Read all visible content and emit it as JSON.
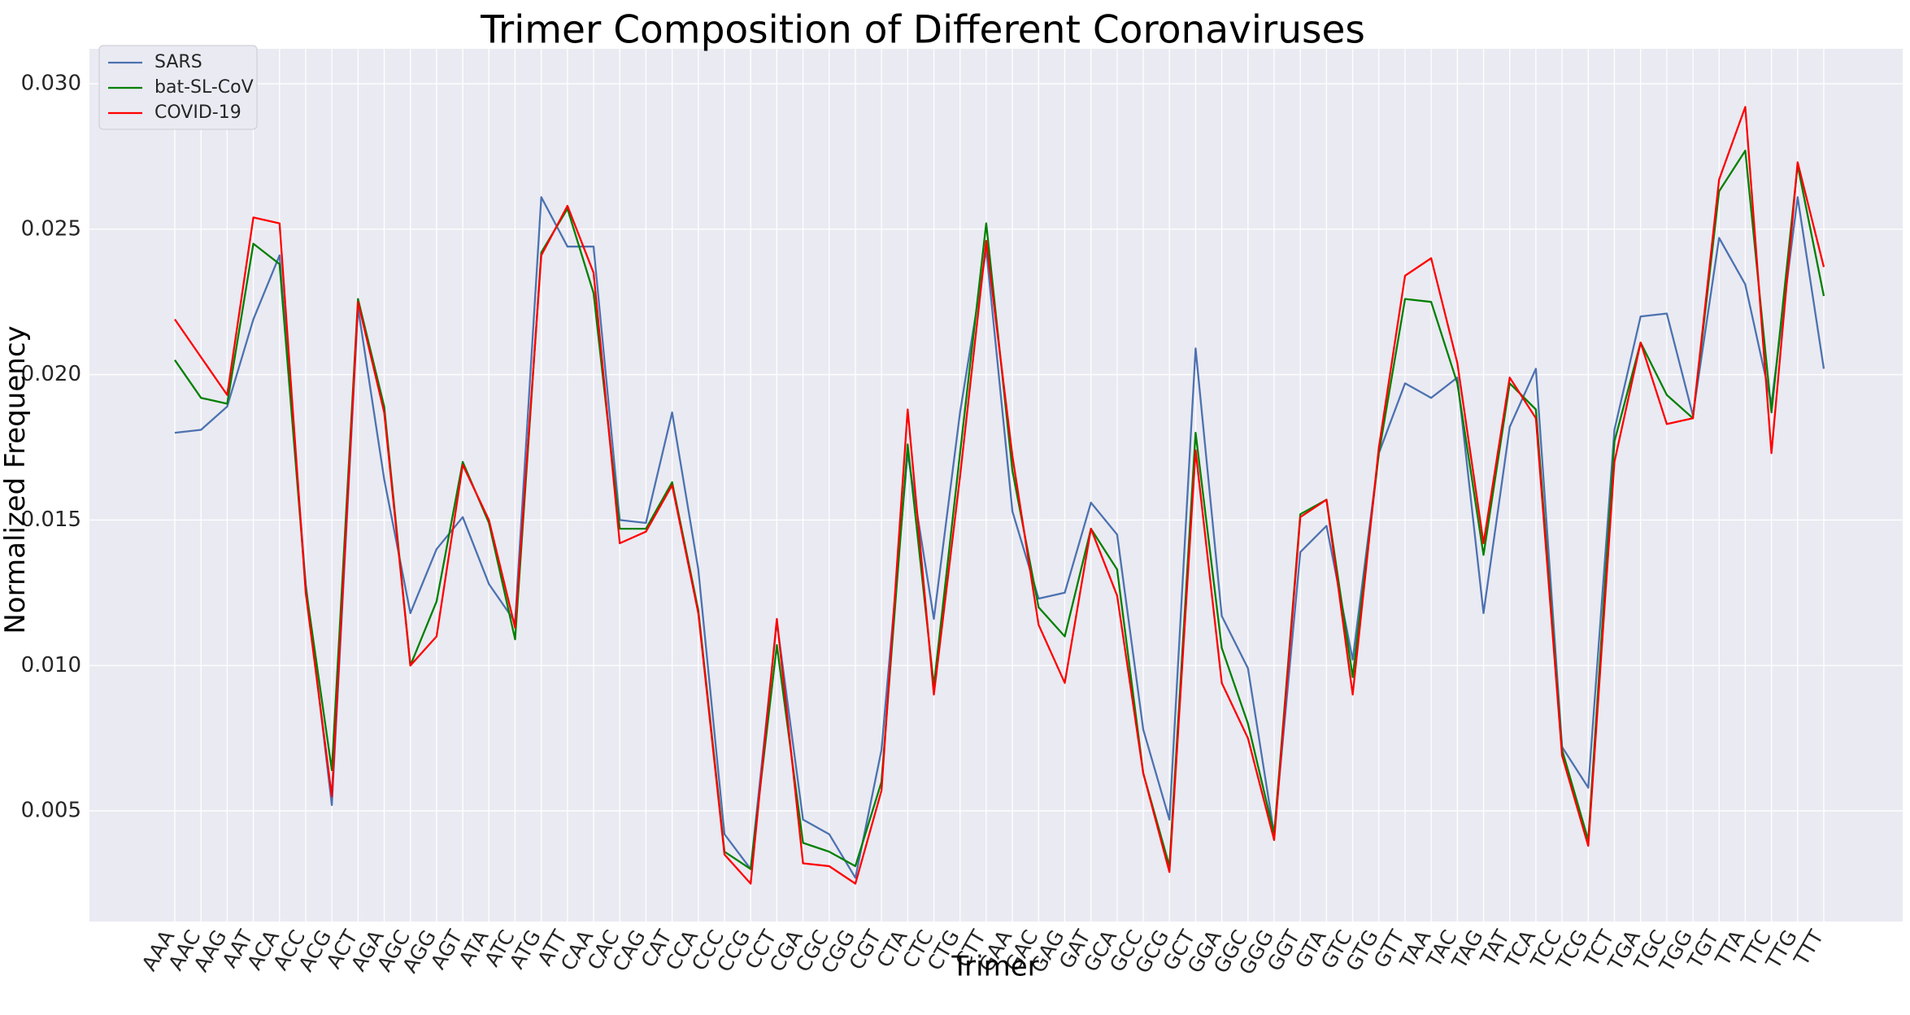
{
  "chart_data": {
    "type": "line",
    "title": "Trimer Composition of Different Coronaviruses",
    "xlabel": "Trimer",
    "ylabel": "Normalized Frequency",
    "ylim": [
      0.0012,
      0.0312
    ],
    "yticks": [
      0.005,
      0.01,
      0.015,
      0.02,
      0.025,
      0.03
    ],
    "ytick_labels": [
      "0.005",
      "0.010",
      "0.015",
      "0.020",
      "0.025",
      "0.030"
    ],
    "grid": true,
    "legend_position": "top-left",
    "categories": [
      "AAA",
      "AAC",
      "AAG",
      "AAT",
      "ACA",
      "ACC",
      "ACG",
      "ACT",
      "AGA",
      "AGC",
      "AGG",
      "AGT",
      "ATA",
      "ATC",
      "ATG",
      "ATT",
      "CAA",
      "CAC",
      "CAG",
      "CAT",
      "CCA",
      "CCC",
      "CCG",
      "CCT",
      "CGA",
      "CGC",
      "CGG",
      "CGT",
      "CTA",
      "CTC",
      "CTG",
      "CTT",
      "GAA",
      "GAC",
      "GAG",
      "GAT",
      "GCA",
      "GCC",
      "GCG",
      "GCT",
      "GGA",
      "GGC",
      "GGG",
      "GGT",
      "GTA",
      "GTC",
      "GTG",
      "GTT",
      "TAA",
      "TAC",
      "TAG",
      "TAT",
      "TCA",
      "TCC",
      "TCG",
      "TCT",
      "TGA",
      "TGC",
      "TGG",
      "TGT",
      "TTA",
      "TTC",
      "TTG",
      "TTT"
    ],
    "series": [
      {
        "name": "SARS",
        "color": "#4c72b0",
        "values": [
          0.018,
          0.0181,
          0.0189,
          0.0219,
          0.0241,
          0.0128,
          0.0052,
          0.0223,
          0.0164,
          0.0118,
          0.014,
          0.0151,
          0.0128,
          0.0115,
          0.0261,
          0.0244,
          0.0244,
          0.015,
          0.0149,
          0.0187,
          0.0133,
          0.0042,
          0.003,
          0.0115,
          0.0047,
          0.0042,
          0.0027,
          0.0071,
          0.0173,
          0.0116,
          0.0187,
          0.0243,
          0.0153,
          0.0123,
          0.0125,
          0.0156,
          0.0145,
          0.0078,
          0.0047,
          0.0209,
          0.0117,
          0.0099,
          0.0042,
          0.0139,
          0.0148,
          0.0102,
          0.0173,
          0.0197,
          0.0192,
          0.0199,
          0.0118,
          0.0182,
          0.0202,
          0.0072,
          0.0058,
          0.0181,
          0.022,
          0.0221,
          0.0186,
          0.0247,
          0.0231,
          0.019,
          0.0261,
          0.0202
        ]
      },
      {
        "name": "bat-SL-CoV",
        "color": "#008000",
        "values": [
          0.0205,
          0.0192,
          0.019,
          0.0245,
          0.0238,
          0.0127,
          0.0064,
          0.0226,
          0.0189,
          0.01,
          0.0122,
          0.017,
          0.0149,
          0.0109,
          0.0242,
          0.0257,
          0.0228,
          0.0147,
          0.0147,
          0.0163,
          0.0119,
          0.0036,
          0.003,
          0.0107,
          0.0039,
          0.0036,
          0.0031,
          0.006,
          0.0176,
          0.0093,
          0.0173,
          0.0252,
          0.0167,
          0.012,
          0.011,
          0.0147,
          0.0133,
          0.0063,
          0.0031,
          0.018,
          0.0106,
          0.008,
          0.0042,
          0.0152,
          0.0157,
          0.0096,
          0.0173,
          0.0226,
          0.0225,
          0.0197,
          0.0138,
          0.0197,
          0.0188,
          0.0071,
          0.004,
          0.0177,
          0.0211,
          0.0193,
          0.0185,
          0.0263,
          0.0277,
          0.0187,
          0.0272,
          0.0227
        ]
      },
      {
        "name": "COVID-19",
        "color": "#ff0000",
        "values": [
          0.0219,
          0.0206,
          0.0193,
          0.0254,
          0.0252,
          0.0125,
          0.0055,
          0.0225,
          0.0187,
          0.01,
          0.011,
          0.0169,
          0.015,
          0.0113,
          0.0241,
          0.0258,
          0.0235,
          0.0142,
          0.0146,
          0.0162,
          0.0118,
          0.0035,
          0.0025,
          0.0116,
          0.0032,
          0.0031,
          0.0025,
          0.0057,
          0.0188,
          0.009,
          0.0165,
          0.0246,
          0.0172,
          0.0114,
          0.0094,
          0.0147,
          0.0124,
          0.0063,
          0.0029,
          0.0174,
          0.0094,
          0.0075,
          0.004,
          0.0151,
          0.0157,
          0.009,
          0.0175,
          0.0234,
          0.024,
          0.0204,
          0.0142,
          0.0199,
          0.0185,
          0.0069,
          0.0038,
          0.017,
          0.0211,
          0.0183,
          0.0185,
          0.0267,
          0.0292,
          0.0173,
          0.0273,
          0.0237
        ]
      }
    ]
  }
}
